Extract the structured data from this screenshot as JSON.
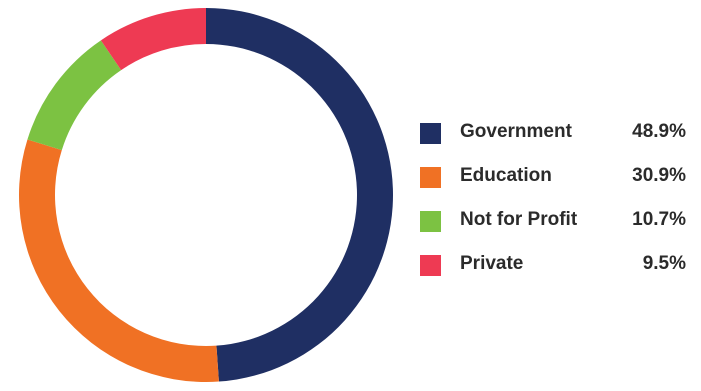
{
  "chart_data": {
    "type": "pie",
    "title": "",
    "categories": [
      "Government",
      "Education",
      "Not for Profit",
      "Private"
    ],
    "values": [
      48.9,
      30.9,
      10.7,
      9.5
    ],
    "value_labels": [
      "48.9%",
      "30.9%",
      "10.7%",
      "9.5%"
    ],
    "colors": [
      "#1f2f63",
      "#f07124",
      "#7cc242",
      "#ee3a53"
    ],
    "donut": true,
    "legend_position": "right"
  }
}
